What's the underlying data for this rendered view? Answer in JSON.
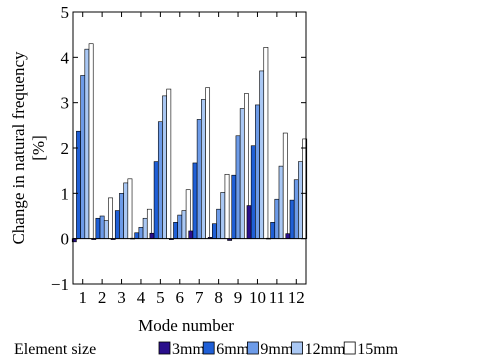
{
  "chart_data": {
    "type": "bar",
    "xlabel": "Mode number",
    "ylabel": "Change in natural frequency",
    "ylabel_unit": "[%]",
    "ylim": [
      -1,
      5
    ],
    "yticks": [
      "−1",
      "0",
      "1",
      "2",
      "3",
      "4",
      "5"
    ],
    "categories": [
      "1",
      "2",
      "3",
      "4",
      "5",
      "6",
      "7",
      "8",
      "9",
      "10",
      "11",
      "12"
    ],
    "legend_title": "Element size",
    "legend_position": "bottom",
    "grid": false,
    "series": [
      {
        "name": "3mm",
        "color": "#2a0f8c",
        "values": [
          -0.07,
          -0.02,
          -0.02,
          0.01,
          0.12,
          -0.02,
          0.17,
          0.03,
          -0.04,
          0.73,
          0.01,
          0.11
        ]
      },
      {
        "name": "6mm",
        "color": "#1f5fd6",
        "values": [
          2.37,
          0.45,
          0.62,
          0.13,
          1.7,
          0.36,
          1.67,
          0.33,
          1.4,
          2.05,
          0.36,
          0.85
        ]
      },
      {
        "name": "9mm",
        "color": "#6d9be8",
        "values": [
          3.6,
          0.5,
          1.0,
          0.25,
          2.58,
          0.52,
          2.63,
          0.65,
          2.27,
          2.95,
          0.87,
          1.3
        ]
      },
      {
        "name": "12mm",
        "color": "#aac8f4",
        "values": [
          4.18,
          0.4,
          1.23,
          0.45,
          3.15,
          0.62,
          3.07,
          1.02,
          2.87,
          3.7,
          1.6,
          1.7
        ]
      },
      {
        "name": "15mm",
        "color": "#ffffff",
        "values": [
          4.3,
          0.9,
          1.32,
          0.65,
          3.3,
          1.08,
          3.33,
          1.42,
          3.2,
          4.22,
          2.33,
          2.2
        ]
      }
    ]
  }
}
